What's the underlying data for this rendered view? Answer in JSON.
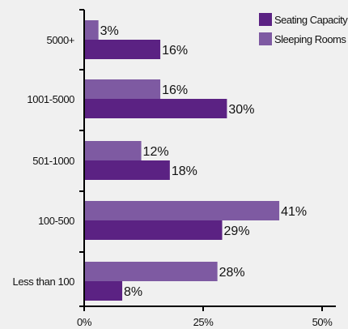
{
  "chart_data": {
    "type": "bar",
    "orientation": "horizontal",
    "categories": [
      "5000+",
      "1001-5000",
      "501-1000",
      "100-500",
      "Less than 100"
    ],
    "series": [
      {
        "name": "Sleeping Rooms",
        "color": "#7e5aa2",
        "values": [
          3,
          16,
          12,
          41,
          28
        ]
      },
      {
        "name": "Seating Capacity",
        "color": "#5b2283",
        "values": [
          16,
          30,
          18,
          29,
          8
        ]
      }
    ],
    "value_labels": {
      "Sleeping Rooms": [
        "3%",
        "16%",
        "12%",
        "41%",
        "28%"
      ],
      "Seating Capacity": [
        "16%",
        "30%",
        "18%",
        "29%",
        "8%"
      ]
    },
    "x_ticks": [
      0,
      25,
      50
    ],
    "x_tick_labels": [
      "0%",
      "25%",
      "50%"
    ],
    "xlim": [
      0,
      50
    ],
    "legend_order": [
      "Seating Capacity",
      "Sleeping Rooms"
    ],
    "legend_position": "top-right",
    "grid": false
  }
}
